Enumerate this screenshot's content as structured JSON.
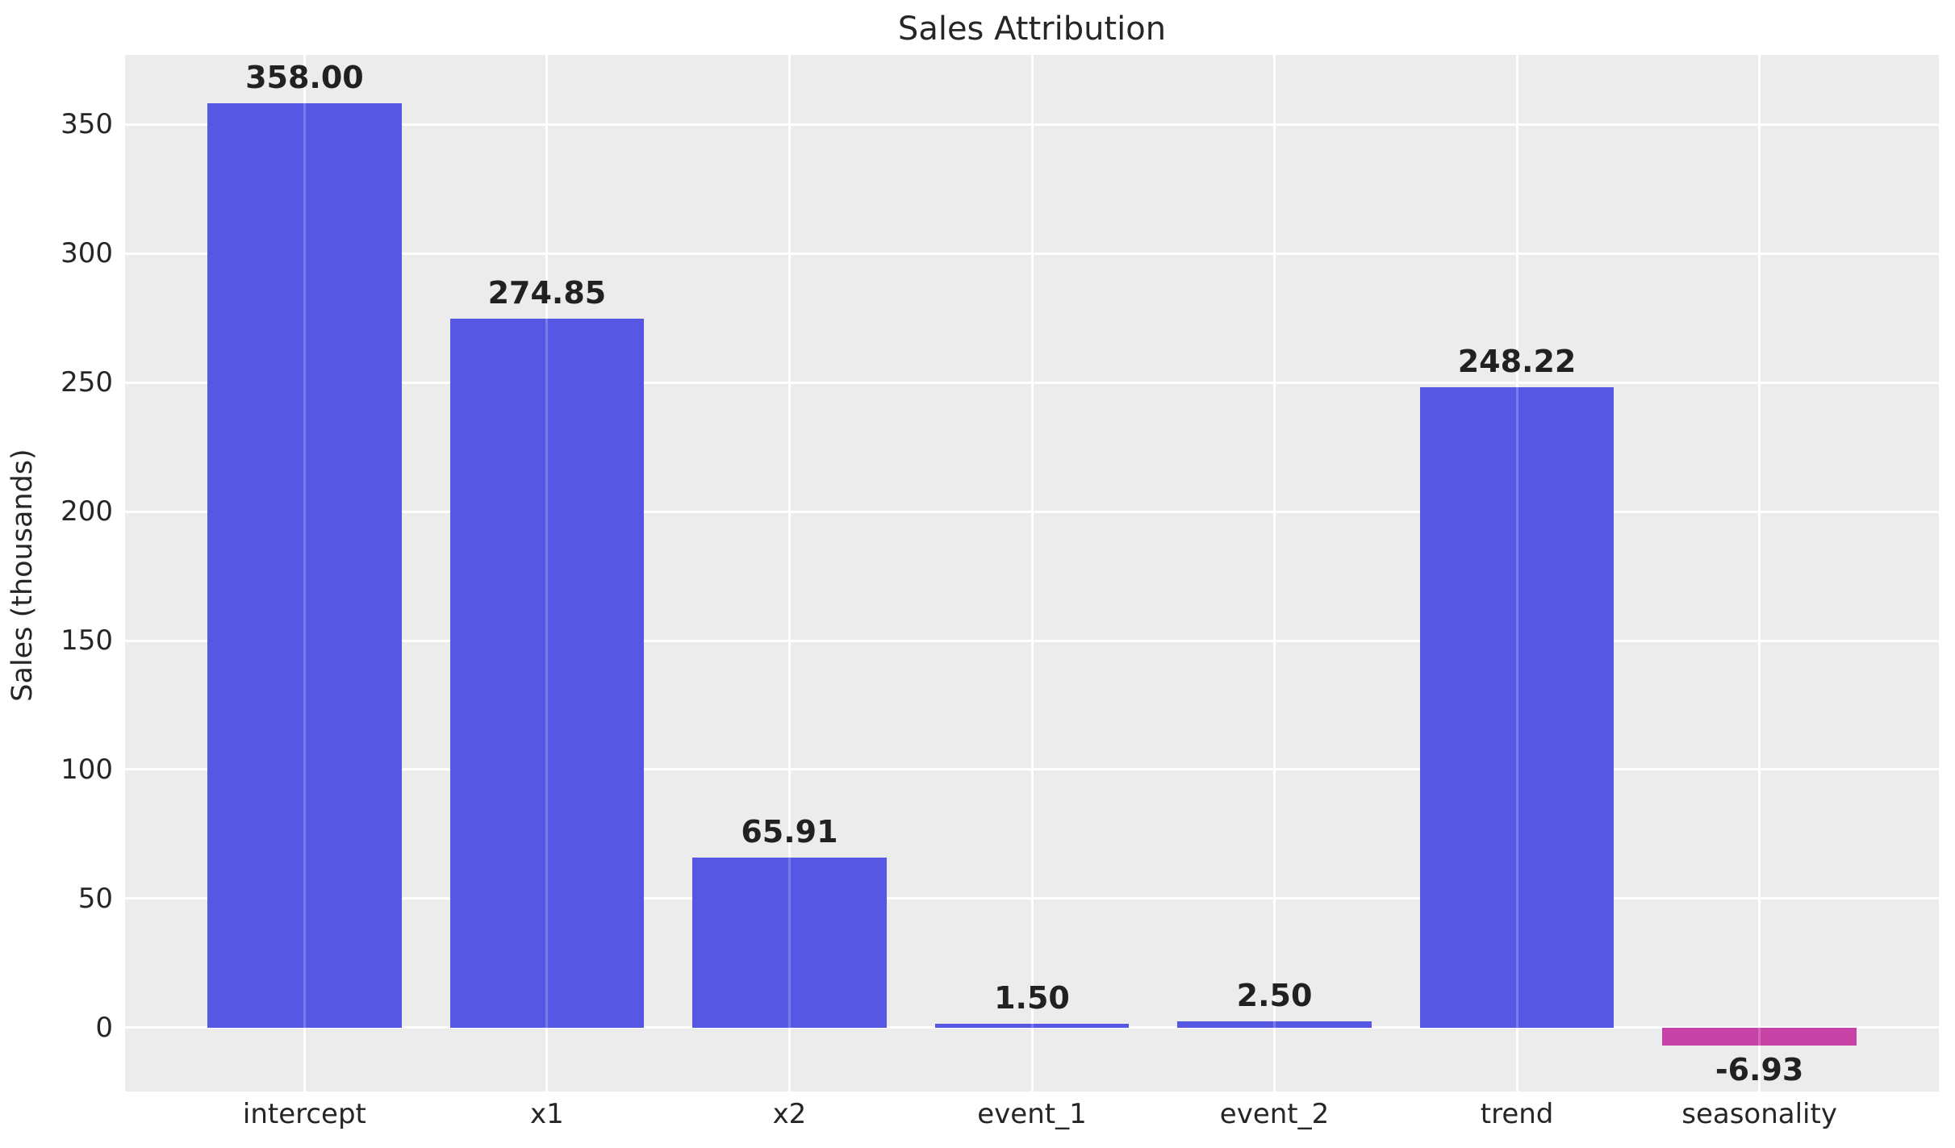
{
  "figure": {
    "title": "Sales Attribution",
    "ylabel": "Sales (thousands)"
  },
  "chart_data": {
    "type": "bar",
    "title": "Sales Attribution",
    "xlabel": "",
    "ylabel": "Sales (thousands)",
    "categories": [
      "intercept",
      "x1",
      "x2",
      "event_1",
      "event_2",
      "trend",
      "seasonality"
    ],
    "values": [
      358.0,
      274.85,
      65.91,
      1.5,
      2.5,
      248.22,
      -6.93
    ],
    "bar_labels": [
      "358.00",
      "274.85",
      "65.91",
      "1.50",
      "2.50",
      "248.22",
      "-6.93"
    ],
    "bar_colors": [
      "#4f51e3",
      "#4f51e3",
      "#4f51e3",
      "#4f51e3",
      "#4f51e3",
      "#4f51e3",
      "#c43aa2"
    ],
    "yticks": [
      0,
      50,
      100,
      150,
      200,
      250,
      300,
      350
    ],
    "ylim": [
      -24.7,
      376.9
    ],
    "grid": true,
    "legend_position": "none",
    "plot_background_color": "#ececec",
    "grid_color": "#ffffff",
    "text_color": "#262626"
  }
}
